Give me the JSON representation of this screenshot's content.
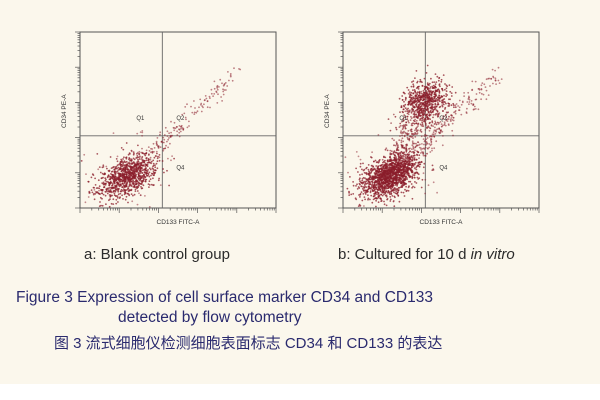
{
  "panels": [
    {
      "id": "a",
      "caption_prefix": "a: Blank control group",
      "xlabel": "CD133 FITC-A",
      "ylabel": "CD34 PE-A",
      "quadrants": [
        "Q1",
        "Q2",
        "Q4"
      ]
    },
    {
      "id": "b",
      "caption_prefix": "b: Cultured for 10 d ",
      "caption_italic": "in vitro",
      "xlabel": "CD133 FITC-A",
      "ylabel": "CD34 PE-A",
      "quadrants": [
        "Q1",
        "Q2",
        "Q4"
      ]
    }
  ],
  "figure_caption": {
    "line1": "Figure 3    Expression of cell surface marker CD34 and CD133",
    "line2": "detected by flow cytometry",
    "chinese": "图 3    流式细胞仪检测细胞表面标志 CD34 和 CD133 的表达"
  },
  "colors": {
    "dots": "#8b1e2b",
    "caption_blue": "#2a2a6e",
    "axis": "#555555",
    "background": "#fbf7ec"
  }
}
